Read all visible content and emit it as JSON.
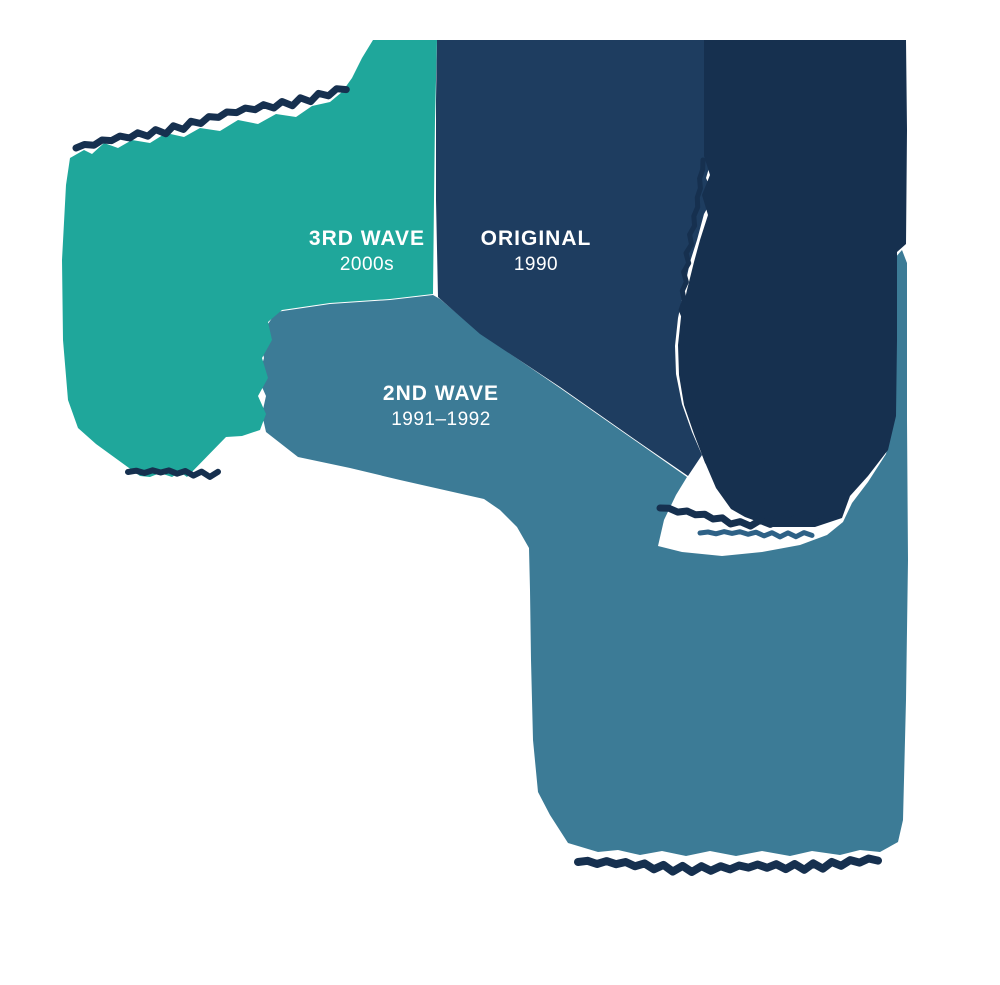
{
  "diagram": {
    "type": "three-wave organic pie infographic",
    "background": "#ffffff"
  },
  "waves": [
    {
      "id": "third",
      "label": "3RD WAVE",
      "years": "2000s",
      "color": "#1FA79B"
    },
    {
      "id": "original",
      "label": "ORIGINAL",
      "years": "1990",
      "color": "#1E3D60"
    },
    {
      "id": "second",
      "label": "2ND WAVE",
      "years": "1991–1992",
      "color": "#3C7B96"
    }
  ],
  "colors": {
    "teal": "#1FA79B",
    "navy_wedge": "#1E3D60",
    "navy_dark_mass": "#16304F",
    "steel_blue": "#3C7B96",
    "caption_dark": "#16304F",
    "caption_blue": "#2E6186",
    "label_text": "#FFFFFF"
  },
  "captions": {
    "note": "small curved script captions along blob rims, too small to be legible",
    "locations": [
      "above top-left teal rim",
      "below teal bottom tip",
      "vertical strip between navy wedge and dark navy mass",
      "below dark navy bottom tip (two lines, dark + blue)",
      "below steel-blue bottom rim",
      "teal/blue wavy vertical boundary"
    ]
  }
}
